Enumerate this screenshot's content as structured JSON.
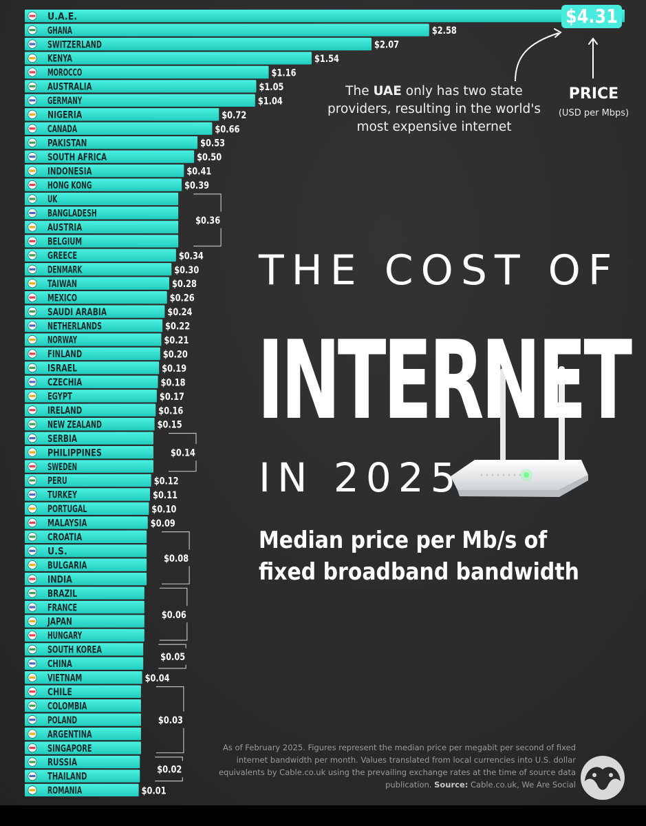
{
  "title": {
    "line1": "THE COST OF",
    "line2": "INTERNET",
    "line3": "IN 2025"
  },
  "subtitle": {
    "line1": "Median price per Mb/s of",
    "line2": "fixed broadband bandwidth"
  },
  "annotation": {
    "before": "The ",
    "highlight": "UAE",
    "after": " only has two state providers, resulting in the world's most expensive internet"
  },
  "legend": {
    "title": "PRICE",
    "unit": "(USD per Mbps)"
  },
  "footnote": {
    "text": "As of February 2025. Figures represent the median price per megabit per second of fixed internet bandwidth per month. Values translated from local currencies into U.S. dollar equivalents by Cable.co.uk using the prevailing exchange rates at the time of source data publication.",
    "source_label": "Source:",
    "source_text": "Cable.co.uk, We Are Social"
  },
  "colors": {
    "bar": "#2fe0cf",
    "bar_light": "#49ecdc",
    "background": "#2a2a2b",
    "label": "#0d2a2a",
    "value": "#ffffff"
  },
  "chart_data": {
    "type": "bar",
    "orientation": "horizontal",
    "title": "The Cost of Internet in 2025",
    "xlabel": "Price (USD per Mbps)",
    "categories": [
      "U.A.E.",
      "GHANA",
      "SWITZERLAND",
      "KENYA",
      "MOROCCO",
      "AUSTRALIA",
      "GERMANY",
      "NIGERIA",
      "CANADA",
      "PAKISTAN",
      "SOUTH AFRICA",
      "INDONESIA",
      "HONG KONG",
      "UK",
      "BANGLADESH",
      "AUSTRIA",
      "BELGIUM",
      "GREECE",
      "DENMARK",
      "TAIWAN",
      "MEXICO",
      "SAUDI ARABIA",
      "NETHERLANDS",
      "NORWAY",
      "FINLAND",
      "ISRAEL",
      "CZECHIA",
      "EGYPT",
      "IRELAND",
      "NEW ZEALAND",
      "SERBIA",
      "PHILIPPINES",
      "SWEDEN",
      "PERU",
      "TURKEY",
      "PORTUGAL",
      "MALAYSIA",
      "CROATIA",
      "U.S.",
      "BULGARIA",
      "INDIA",
      "BRAZIL",
      "FRANCE",
      "JAPAN",
      "HUNGARY",
      "SOUTH KOREA",
      "CHINA",
      "VIETNAM",
      "CHILE",
      "COLOMBIA",
      "POLAND",
      "ARGENTINA",
      "SINGAPORE",
      "RUSSIA",
      "THAILAND",
      "ROMANIA"
    ],
    "values": [
      4.31,
      2.58,
      2.07,
      1.54,
      1.16,
      1.05,
      1.04,
      0.72,
      0.66,
      0.53,
      0.5,
      0.41,
      0.39,
      0.36,
      0.36,
      0.36,
      0.36,
      0.34,
      0.3,
      0.28,
      0.26,
      0.24,
      0.22,
      0.21,
      0.2,
      0.19,
      0.18,
      0.17,
      0.16,
      0.15,
      0.14,
      0.14,
      0.14,
      0.12,
      0.11,
      0.1,
      0.09,
      0.08,
      0.08,
      0.08,
      0.08,
      0.06,
      0.06,
      0.06,
      0.06,
      0.05,
      0.05,
      0.04,
      0.03,
      0.03,
      0.03,
      0.03,
      0.03,
      0.02,
      0.02,
      0.01
    ],
    "value_labels": [
      "$4.31",
      "$2.58",
      "$2.07",
      "$1.54",
      "$1.16",
      "$1.05",
      "$1.04",
      "$0.72",
      "$0.66",
      "$0.53",
      "$0.50",
      "$0.41",
      "$0.39",
      "$0.36",
      "$0.36",
      "$0.36",
      "$0.36",
      "$0.34",
      "$0.30",
      "$0.28",
      "$0.26",
      "$0.24",
      "$0.22",
      "$0.21",
      "$0.20",
      "$0.19",
      "$0.18",
      "$0.17",
      "$0.16",
      "$0.15",
      "$0.14",
      "$0.14",
      "$0.14",
      "$0.12",
      "$0.11",
      "$0.10",
      "$0.09",
      "$0.08",
      "$0.08",
      "$0.08",
      "$0.08",
      "$0.06",
      "$0.06",
      "$0.06",
      "$0.06",
      "$0.05",
      "$0.05",
      "$0.04",
      "$0.03",
      "$0.03",
      "$0.03",
      "$0.03",
      "$0.03",
      "$0.02",
      "$0.02",
      "$0.01"
    ],
    "groups": [
      {
        "label": "$0.36",
        "from": 13,
        "to": 16
      },
      {
        "label": "$0.14",
        "from": 30,
        "to": 32
      },
      {
        "label": "$0.08",
        "from": 37,
        "to": 40
      },
      {
        "label": "$0.06",
        "from": 41,
        "to": 44
      },
      {
        "label": "$0.05",
        "from": 45,
        "to": 46
      },
      {
        "label": "$0.03",
        "from": 48,
        "to": 52
      },
      {
        "label": "$0.02",
        "from": 53,
        "to": 54
      }
    ],
    "xlim": [
      0,
      4.31
    ]
  }
}
